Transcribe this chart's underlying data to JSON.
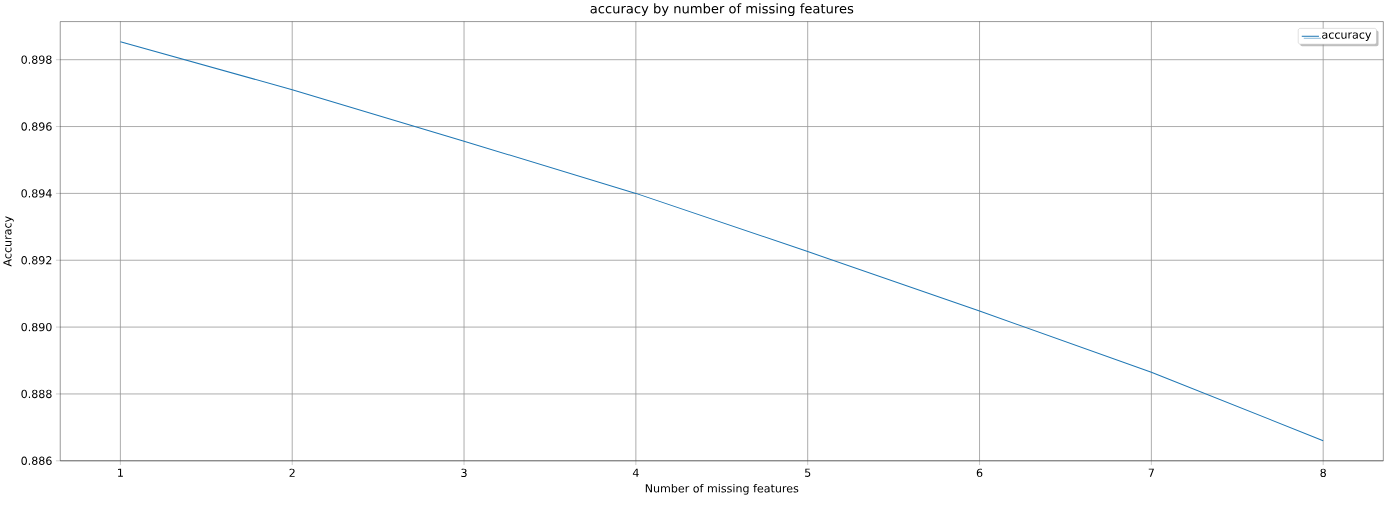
{
  "chart_data": {
    "type": "line",
    "title": "accuracy by number of missing features",
    "xlabel": "Number of missing features",
    "ylabel": "Accuracy",
    "x": [
      1,
      2,
      3,
      4,
      5,
      6,
      7,
      8
    ],
    "series": [
      {
        "name": "accuracy",
        "color": "#1f77b4",
        "values": [
          0.89854,
          0.8971,
          0.89556,
          0.894,
          0.89226,
          0.89048,
          0.88865,
          0.8866
        ]
      }
    ],
    "xlim": [
      0.65,
      8.35
    ],
    "ylim": [
      0.886,
      0.89914
    ],
    "xticks": [
      1,
      2,
      3,
      4,
      5,
      6,
      7,
      8
    ],
    "yticks": [
      {
        "value": 0.886,
        "label": "0.886"
      },
      {
        "value": 0.888,
        "label": "0.888"
      },
      {
        "value": 0.89,
        "label": "0.890"
      },
      {
        "value": 0.892,
        "label": "0.892"
      },
      {
        "value": 0.894,
        "label": "0.894"
      },
      {
        "value": 0.896,
        "label": "0.896"
      },
      {
        "value": 0.898,
        "label": "0.898"
      }
    ],
    "grid": true,
    "legend": "top right",
    "marker": "none",
    "line_style": "solid"
  }
}
